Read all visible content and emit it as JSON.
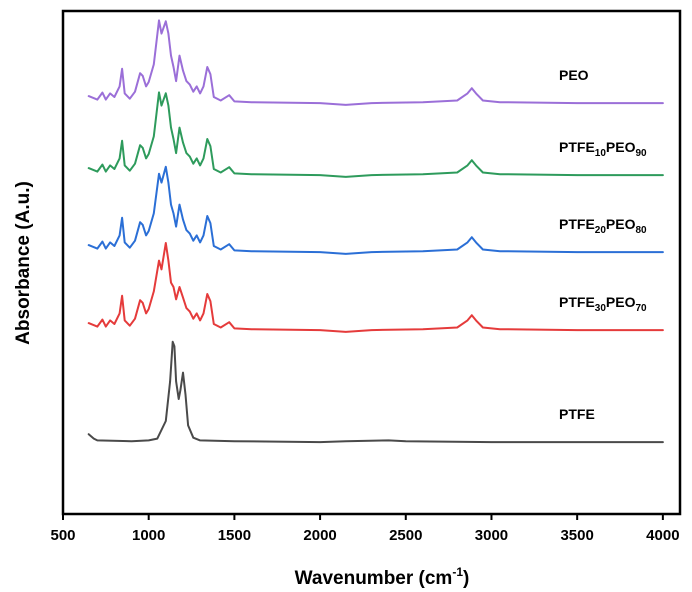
{
  "chart_data": {
    "type": "line",
    "title": "",
    "xlabel": "Wavenumber (cm⁻¹)",
    "ylabel": "Absorbance (A.u.)",
    "xlim": [
      500,
      4100
    ],
    "x_ticks": [
      "500",
      "1000",
      "1500",
      "2000",
      "2500",
      "3000",
      "3500",
      "4000"
    ],
    "y_ticks_shown": false,
    "grid": false,
    "legend": "inline labels at right of each trace",
    "series": [
      {
        "name": "PEO",
        "label_parts": [
          {
            "t": "PEO"
          }
        ],
        "color": "#9b6fd8",
        "offset": 4,
        "points": [
          [
            650,
            0.09
          ],
          [
            700,
            0.05
          ],
          [
            730,
            0.13
          ],
          [
            750,
            0.05
          ],
          [
            775,
            0.12
          ],
          [
            800,
            0.08
          ],
          [
            830,
            0.2
          ],
          [
            845,
            0.4
          ],
          [
            860,
            0.12
          ],
          [
            890,
            0.06
          ],
          [
            920,
            0.14
          ],
          [
            950,
            0.35
          ],
          [
            965,
            0.32
          ],
          [
            985,
            0.2
          ],
          [
            1000,
            0.25
          ],
          [
            1030,
            0.45
          ],
          [
            1060,
            0.95
          ],
          [
            1075,
            0.8
          ],
          [
            1100,
            0.94
          ],
          [
            1115,
            0.8
          ],
          [
            1130,
            0.55
          ],
          [
            1145,
            0.42
          ],
          [
            1160,
            0.26
          ],
          [
            1180,
            0.55
          ],
          [
            1200,
            0.38
          ],
          [
            1220,
            0.26
          ],
          [
            1240,
            0.22
          ],
          [
            1260,
            0.14
          ],
          [
            1280,
            0.2
          ],
          [
            1300,
            0.12
          ],
          [
            1320,
            0.2
          ],
          [
            1342,
            0.42
          ],
          [
            1360,
            0.34
          ],
          [
            1380,
            0.08
          ],
          [
            1420,
            0.04
          ],
          [
            1470,
            0.1
          ],
          [
            1500,
            0.03
          ],
          [
            1600,
            0.02
          ],
          [
            2000,
            0.01
          ],
          [
            2150,
            -0.01
          ],
          [
            2300,
            0.01
          ],
          [
            2600,
            0.02
          ],
          [
            2800,
            0.04
          ],
          [
            2860,
            0.12
          ],
          [
            2885,
            0.18
          ],
          [
            2910,
            0.12
          ],
          [
            2950,
            0.04
          ],
          [
            3050,
            0.02
          ],
          [
            3500,
            0.01
          ],
          [
            4000,
            0.01
          ]
        ]
      },
      {
        "name": "PTFE10PEO90",
        "label_parts": [
          {
            "t": "PTFE"
          },
          {
            "t": "10",
            "sub": true
          },
          {
            "t": "PEO"
          },
          {
            "t": "90",
            "sub": true
          }
        ],
        "color": "#2e9b5c",
        "offset": 3,
        "points": [
          [
            650,
            0.09
          ],
          [
            700,
            0.05
          ],
          [
            730,
            0.13
          ],
          [
            750,
            0.05
          ],
          [
            775,
            0.12
          ],
          [
            800,
            0.08
          ],
          [
            830,
            0.2
          ],
          [
            845,
            0.4
          ],
          [
            860,
            0.12
          ],
          [
            890,
            0.06
          ],
          [
            920,
            0.14
          ],
          [
            950,
            0.35
          ],
          [
            965,
            0.32
          ],
          [
            985,
            0.2
          ],
          [
            1000,
            0.25
          ],
          [
            1030,
            0.45
          ],
          [
            1060,
            0.95
          ],
          [
            1075,
            0.8
          ],
          [
            1100,
            0.94
          ],
          [
            1115,
            0.8
          ],
          [
            1130,
            0.55
          ],
          [
            1145,
            0.42
          ],
          [
            1160,
            0.26
          ],
          [
            1180,
            0.55
          ],
          [
            1200,
            0.38
          ],
          [
            1220,
            0.26
          ],
          [
            1240,
            0.22
          ],
          [
            1260,
            0.14
          ],
          [
            1280,
            0.2
          ],
          [
            1300,
            0.12
          ],
          [
            1320,
            0.2
          ],
          [
            1342,
            0.42
          ],
          [
            1360,
            0.34
          ],
          [
            1380,
            0.08
          ],
          [
            1420,
            0.04
          ],
          [
            1470,
            0.1
          ],
          [
            1500,
            0.03
          ],
          [
            1600,
            0.02
          ],
          [
            2000,
            0.01
          ],
          [
            2150,
            -0.01
          ],
          [
            2300,
            0.01
          ],
          [
            2600,
            0.02
          ],
          [
            2800,
            0.04
          ],
          [
            2860,
            0.12
          ],
          [
            2885,
            0.18
          ],
          [
            2910,
            0.12
          ],
          [
            2950,
            0.04
          ],
          [
            3050,
            0.02
          ],
          [
            3500,
            0.01
          ],
          [
            4000,
            0.01
          ]
        ]
      },
      {
        "name": "PTFE20PEO80",
        "label_parts": [
          {
            "t": "PTFE"
          },
          {
            "t": "20",
            "sub": true
          },
          {
            "t": "PEO"
          },
          {
            "t": "80",
            "sub": true
          }
        ],
        "color": "#2b6fd6",
        "offset": 2,
        "points": [
          [
            650,
            0.09
          ],
          [
            700,
            0.05
          ],
          [
            730,
            0.13
          ],
          [
            750,
            0.05
          ],
          [
            775,
            0.12
          ],
          [
            800,
            0.08
          ],
          [
            830,
            0.2
          ],
          [
            845,
            0.4
          ],
          [
            860,
            0.12
          ],
          [
            890,
            0.06
          ],
          [
            920,
            0.14
          ],
          [
            950,
            0.35
          ],
          [
            965,
            0.32
          ],
          [
            985,
            0.2
          ],
          [
            1000,
            0.25
          ],
          [
            1030,
            0.45
          ],
          [
            1060,
            0.9
          ],
          [
            1075,
            0.8
          ],
          [
            1100,
            0.98
          ],
          [
            1115,
            0.8
          ],
          [
            1130,
            0.55
          ],
          [
            1145,
            0.45
          ],
          [
            1160,
            0.3
          ],
          [
            1180,
            0.55
          ],
          [
            1200,
            0.38
          ],
          [
            1220,
            0.26
          ],
          [
            1240,
            0.22
          ],
          [
            1260,
            0.14
          ],
          [
            1280,
            0.2
          ],
          [
            1300,
            0.12
          ],
          [
            1320,
            0.2
          ],
          [
            1342,
            0.42
          ],
          [
            1360,
            0.34
          ],
          [
            1380,
            0.08
          ],
          [
            1420,
            0.04
          ],
          [
            1470,
            0.1
          ],
          [
            1500,
            0.03
          ],
          [
            1600,
            0.02
          ],
          [
            2000,
            0.01
          ],
          [
            2150,
            -0.01
          ],
          [
            2300,
            0.01
          ],
          [
            2600,
            0.02
          ],
          [
            2800,
            0.04
          ],
          [
            2860,
            0.12
          ],
          [
            2885,
            0.18
          ],
          [
            2910,
            0.12
          ],
          [
            2950,
            0.04
          ],
          [
            3050,
            0.02
          ],
          [
            3500,
            0.01
          ],
          [
            4000,
            0.01
          ]
        ]
      },
      {
        "name": "PTFE30PEO70",
        "label_parts": [
          {
            "t": "PTFE"
          },
          {
            "t": "30",
            "sub": true
          },
          {
            "t": "PEO"
          },
          {
            "t": "70",
            "sub": true
          }
        ],
        "color": "#e53b3b",
        "offset": 1,
        "points": [
          [
            650,
            0.09
          ],
          [
            700,
            0.05
          ],
          [
            730,
            0.13
          ],
          [
            750,
            0.05
          ],
          [
            775,
            0.12
          ],
          [
            800,
            0.08
          ],
          [
            830,
            0.2
          ],
          [
            845,
            0.4
          ],
          [
            860,
            0.12
          ],
          [
            890,
            0.06
          ],
          [
            920,
            0.14
          ],
          [
            950,
            0.35
          ],
          [
            965,
            0.32
          ],
          [
            985,
            0.2
          ],
          [
            1000,
            0.25
          ],
          [
            1030,
            0.45
          ],
          [
            1060,
            0.8
          ],
          [
            1075,
            0.7
          ],
          [
            1100,
            1.0
          ],
          [
            1115,
            0.8
          ],
          [
            1130,
            0.55
          ],
          [
            1145,
            0.5
          ],
          [
            1160,
            0.36
          ],
          [
            1180,
            0.5
          ],
          [
            1200,
            0.38
          ],
          [
            1220,
            0.26
          ],
          [
            1240,
            0.22
          ],
          [
            1260,
            0.14
          ],
          [
            1280,
            0.2
          ],
          [
            1300,
            0.12
          ],
          [
            1320,
            0.2
          ],
          [
            1342,
            0.42
          ],
          [
            1360,
            0.34
          ],
          [
            1380,
            0.08
          ],
          [
            1420,
            0.04
          ],
          [
            1470,
            0.1
          ],
          [
            1500,
            0.03
          ],
          [
            1600,
            0.02
          ],
          [
            2000,
            0.01
          ],
          [
            2150,
            -0.01
          ],
          [
            2300,
            0.01
          ],
          [
            2600,
            0.02
          ],
          [
            2800,
            0.04
          ],
          [
            2860,
            0.12
          ],
          [
            2885,
            0.18
          ],
          [
            2910,
            0.12
          ],
          [
            2950,
            0.04
          ],
          [
            3050,
            0.02
          ],
          [
            3500,
            0.01
          ],
          [
            4000,
            0.01
          ]
        ]
      },
      {
        "name": "PTFE",
        "label_parts": [
          {
            "t": "PTFE"
          }
        ],
        "color": "#4a4a4a",
        "offset": 0,
        "points": [
          [
            650,
            0.1
          ],
          [
            680,
            0.05
          ],
          [
            700,
            0.03
          ],
          [
            900,
            0.02
          ],
          [
            1000,
            0.03
          ],
          [
            1050,
            0.05
          ],
          [
            1100,
            0.25
          ],
          [
            1125,
            0.7
          ],
          [
            1140,
            1.15
          ],
          [
            1150,
            1.1
          ],
          [
            1160,
            0.7
          ],
          [
            1175,
            0.5
          ],
          [
            1185,
            0.6
          ],
          [
            1200,
            0.8
          ],
          [
            1215,
            0.55
          ],
          [
            1230,
            0.2
          ],
          [
            1260,
            0.06
          ],
          [
            1300,
            0.03
          ],
          [
            1500,
            0.02
          ],
          [
            2000,
            0.01
          ],
          [
            2150,
            0.02
          ],
          [
            2400,
            0.03
          ],
          [
            2500,
            0.02
          ],
          [
            3000,
            0.01
          ],
          [
            3500,
            0.01
          ],
          [
            4000,
            0.01
          ]
        ]
      }
    ]
  }
}
